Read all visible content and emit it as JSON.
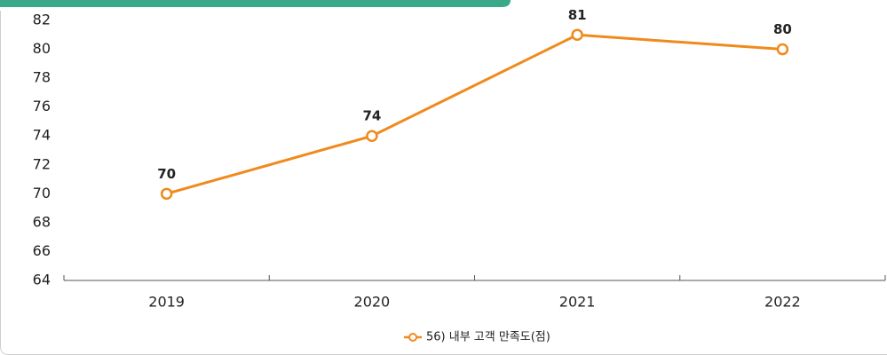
{
  "chart_data": {
    "type": "line",
    "categories": [
      "2019",
      "2020",
      "2021",
      "2022"
    ],
    "series": [
      {
        "name": "56) 내부 고객 만족도(점)",
        "color": "#f08a1c",
        "values": [
          70,
          74,
          81,
          80
        ]
      }
    ],
    "ylim": [
      64,
      82
    ],
    "yticks": [
      64,
      66,
      68,
      70,
      72,
      74,
      76,
      78,
      80,
      82
    ],
    "grid": false,
    "legend": "bottom"
  }
}
